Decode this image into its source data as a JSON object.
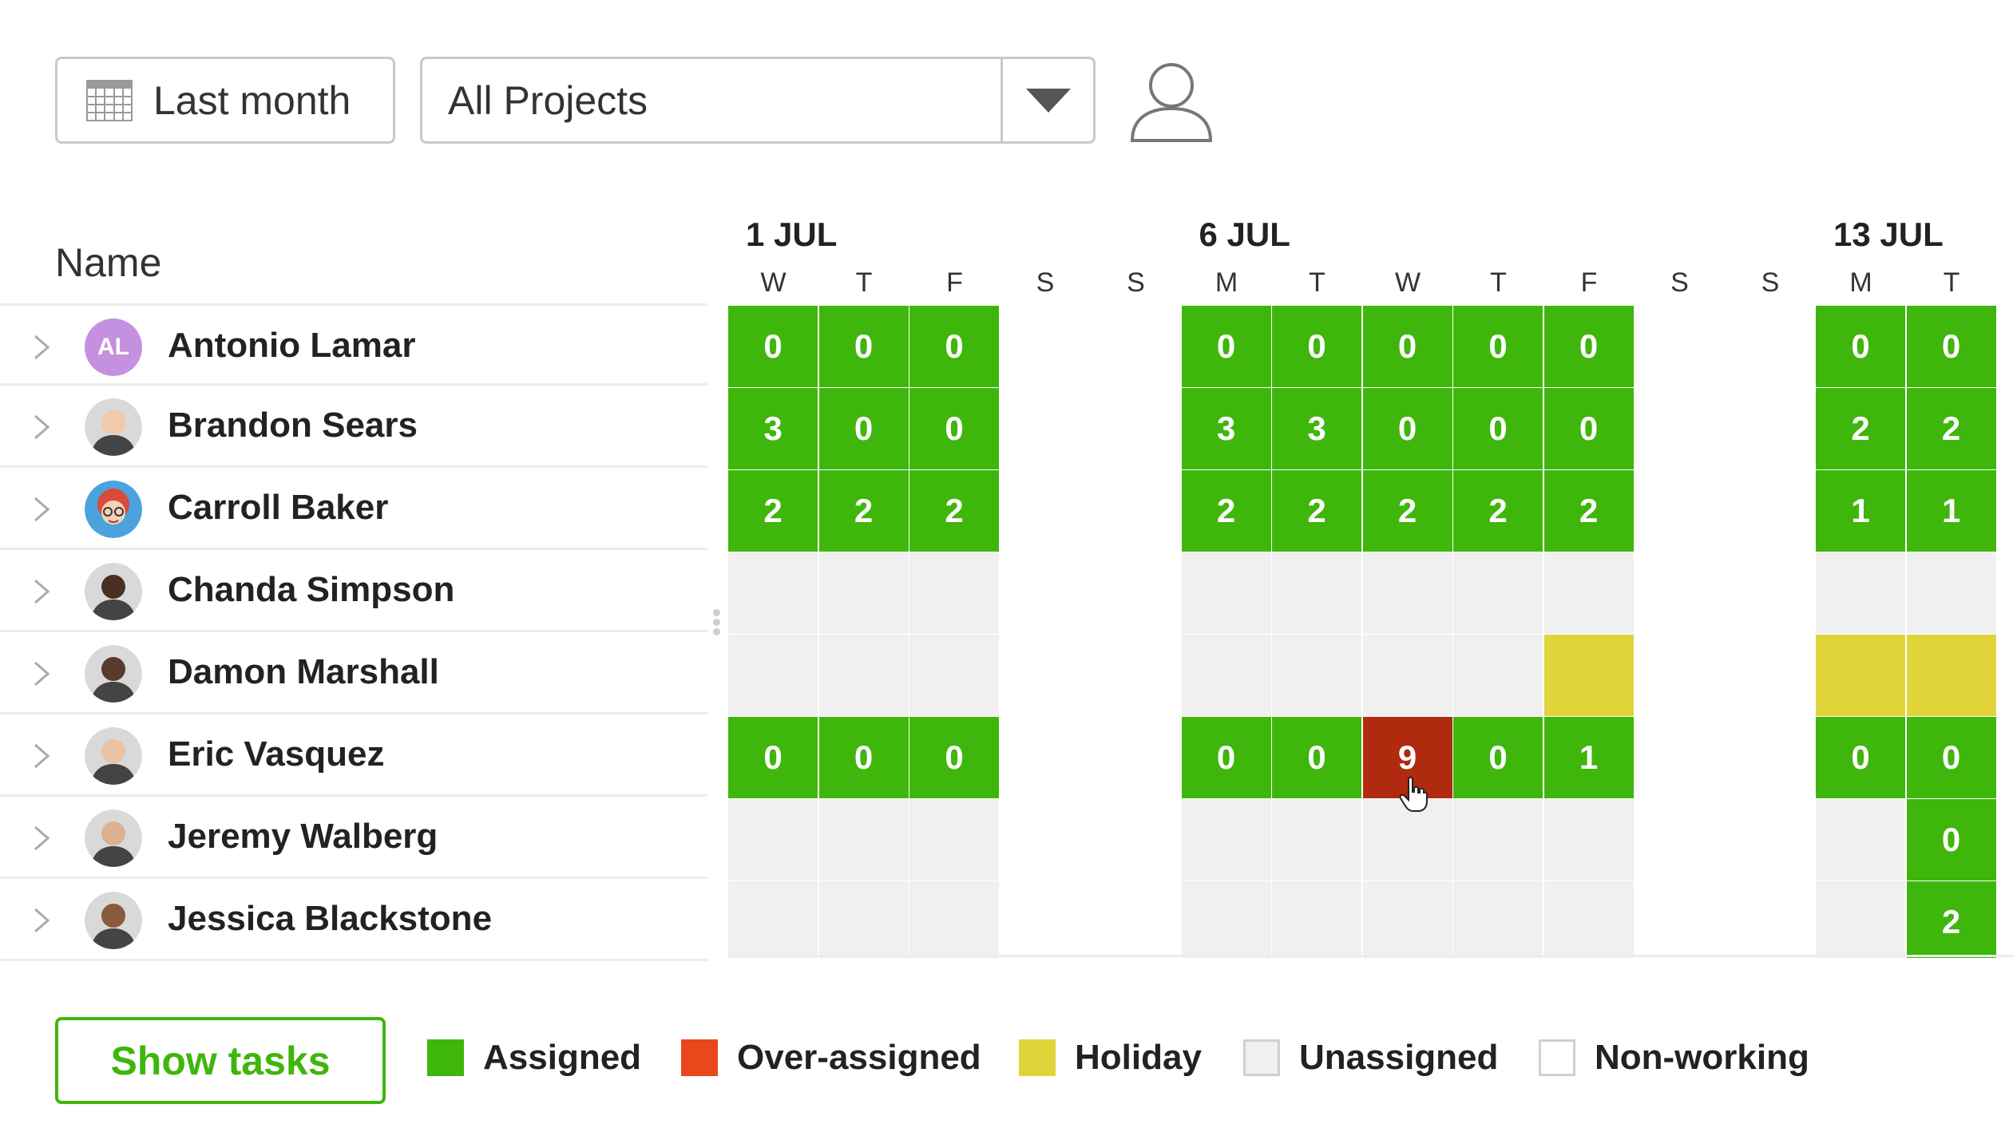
{
  "toolbar": {
    "date_range_label": "Last month",
    "project_select_value": "All Projects"
  },
  "table": {
    "name_header": "Name"
  },
  "weeks": [
    {
      "label": "1 JUL",
      "days": [
        "W",
        "T",
        "F",
        "S",
        "S"
      ]
    },
    {
      "label": "6 JUL",
      "days": [
        "M",
        "T",
        "W",
        "T",
        "F",
        "S",
        "S"
      ]
    },
    {
      "label": "13 JUL",
      "days": [
        "M",
        "T"
      ]
    }
  ],
  "people": [
    {
      "name": "Antonio Lamar",
      "initials": "AL",
      "avatar": "initials",
      "cells": [
        "0",
        "0",
        "0",
        "_",
        "_",
        "0",
        "0",
        "0",
        "0",
        "0",
        "_",
        "_",
        "0",
        "0"
      ],
      "status": [
        "a",
        "a",
        "a",
        "n",
        "n",
        "a",
        "a",
        "a",
        "a",
        "a",
        "n",
        "n",
        "a",
        "a"
      ]
    },
    {
      "name": "Brandon Sears",
      "avatar": "photo",
      "cells": [
        "3",
        "0",
        "0",
        "_",
        "_",
        "3",
        "3",
        "0",
        "0",
        "0",
        "_",
        "_",
        "2",
        "2"
      ],
      "status": [
        "a",
        "a",
        "a",
        "n",
        "n",
        "a",
        "a",
        "a",
        "a",
        "a",
        "n",
        "n",
        "a",
        "a"
      ]
    },
    {
      "name": "Carroll Baker",
      "avatar": "cartoon",
      "cells": [
        "2",
        "2",
        "2",
        "_",
        "_",
        "2",
        "2",
        "2",
        "2",
        "2",
        "_",
        "_",
        "1",
        "1"
      ],
      "status": [
        "a",
        "a",
        "a",
        "n",
        "n",
        "a",
        "a",
        "a",
        "a",
        "a",
        "n",
        "n",
        "a",
        "a"
      ]
    },
    {
      "name": "Chanda Simpson",
      "avatar": "photo",
      "cells": [
        "",
        "",
        "",
        "_",
        "_",
        "",
        "",
        "",
        "",
        "",
        "_",
        "_",
        "",
        ""
      ],
      "status": [
        "u",
        "u",
        "u",
        "n",
        "n",
        "u",
        "u",
        "u",
        "u",
        "u",
        "n",
        "n",
        "u",
        "u"
      ]
    },
    {
      "name": "Damon Marshall",
      "avatar": "photo",
      "cells": [
        "",
        "",
        "",
        "_",
        "_",
        "",
        "",
        "",
        "",
        "",
        "_",
        "_",
        "",
        ""
      ],
      "status": [
        "u",
        "u",
        "u",
        "n",
        "n",
        "u",
        "u",
        "u",
        "u",
        "h",
        "n",
        "n",
        "h",
        "h"
      ]
    },
    {
      "name": "Eric Vasquez",
      "avatar": "photo",
      "cells": [
        "0",
        "0",
        "0",
        "_",
        "_",
        "0",
        "0",
        "9",
        "0",
        "1",
        "_",
        "_",
        "0",
        "0"
      ],
      "status": [
        "a",
        "a",
        "a",
        "n",
        "n",
        "a",
        "a",
        "o",
        "a",
        "a",
        "n",
        "n",
        "a",
        "a"
      ]
    },
    {
      "name": "Jeremy Walberg",
      "avatar": "photo",
      "cells": [
        "",
        "",
        "",
        "_",
        "_",
        "",
        "",
        "",
        "",
        "",
        "_",
        "_",
        "",
        "0"
      ],
      "status": [
        "u",
        "u",
        "u",
        "n",
        "n",
        "u",
        "u",
        "u",
        "u",
        "u",
        "n",
        "n",
        "u",
        "a"
      ]
    },
    {
      "name": "Jessica Blackstone",
      "avatar": "photo",
      "cells": [
        "",
        "",
        "",
        "_",
        "_",
        "",
        "",
        "",
        "",
        "",
        "_",
        "_",
        "",
        "2"
      ],
      "status": [
        "u",
        "u",
        "u",
        "n",
        "n",
        "u",
        "u",
        "u",
        "u",
        "u",
        "n",
        "n",
        "u",
        "a"
      ]
    }
  ],
  "footer": {
    "show_tasks_label": "Show tasks",
    "legend": [
      {
        "label": "Assigned",
        "color": "#3fb60b"
      },
      {
        "label": "Over-assigned",
        "color": "#e8481c"
      },
      {
        "label": "Holiday",
        "color": "#e0d43a"
      },
      {
        "label": "Unassigned",
        "color": "#f0f0f0"
      },
      {
        "label": "Non-working",
        "color": "#ffffff"
      }
    ]
  },
  "colors": {
    "assigned": "#3fb60b",
    "over_assigned_cell": "#b02a10",
    "holiday": "#e0d43a",
    "unassigned": "#f0f0f0",
    "border": "#c9c9c9"
  }
}
